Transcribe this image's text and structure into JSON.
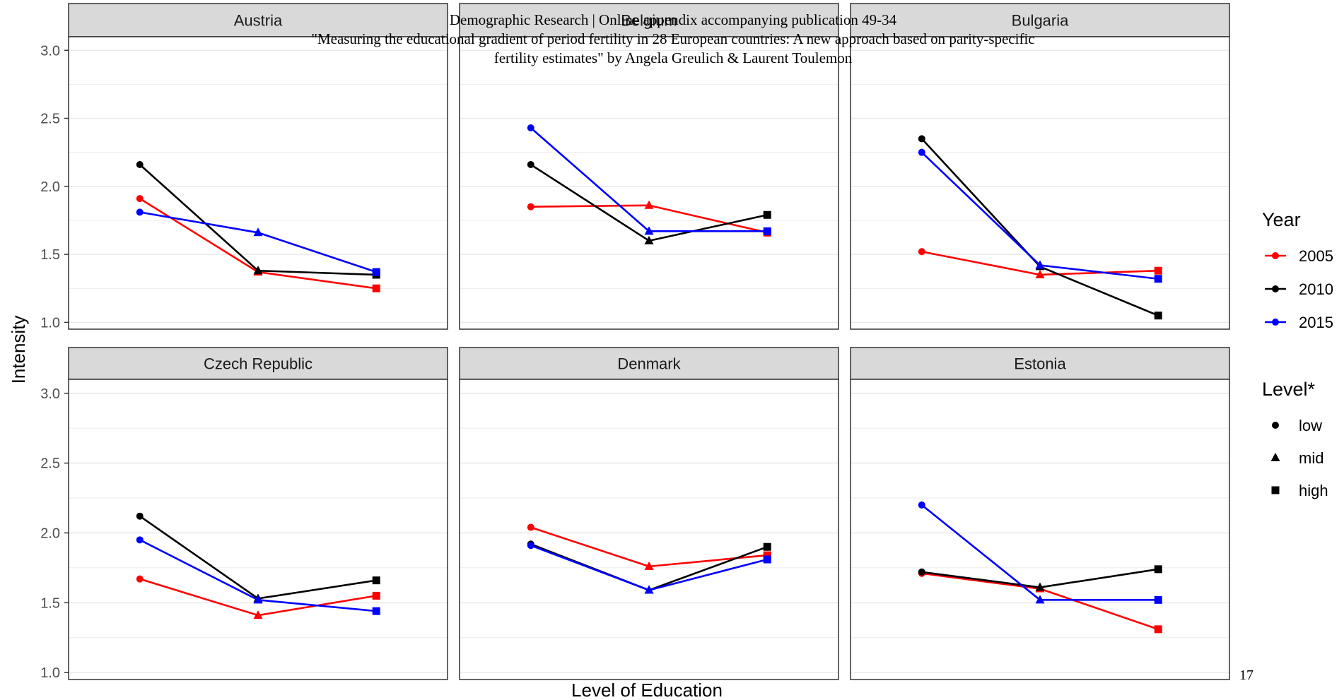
{
  "header": {
    "line1": "Demographic Research | Online appendix accompanying publication 49-34",
    "line2": "\"Measuring the educational gradient of period fertility in 28 European countries: A new approach based on parity-specific",
    "line3": "fertility estimates\" by Angela Greulich & Laurent Toulemon"
  },
  "page_number": "17",
  "colors": {
    "2005": "#ff0000",
    "2010": "#000000",
    "2015": "#0000ff",
    "strip_fill": "#d9d9d9",
    "grid": "#ebebeb",
    "panel_border": "#333333"
  },
  "chart_data": {
    "type": "line",
    "ylabel": "Intensity",
    "xlabel": "Level of Education",
    "ylim": [
      0.95,
      3.1
    ],
    "yticks": [
      "1.0",
      "1.5",
      "2.0",
      "2.5",
      "3.0"
    ],
    "ytick_values": [
      1.0,
      1.5,
      2.0,
      2.5,
      3.0
    ],
    "categories": [
      "low",
      "mid",
      "high"
    ],
    "grid": true,
    "legend_placement": "right",
    "legend": {
      "year_title": "Year",
      "years": [
        "2005",
        "2010",
        "2015"
      ],
      "level_title": "Level*",
      "levels": [
        "low",
        "mid",
        "high"
      ],
      "level_shapes": [
        "circle",
        "triangle",
        "square"
      ]
    },
    "panels": [
      {
        "name": "Austria",
        "series": [
          {
            "name": "2005",
            "values": [
              1.91,
              1.37,
              1.25
            ]
          },
          {
            "name": "2010",
            "values": [
              2.16,
              1.38,
              1.35
            ]
          },
          {
            "name": "2015",
            "values": [
              1.81,
              1.66,
              1.37
            ]
          }
        ]
      },
      {
        "name": "Belgium",
        "series": [
          {
            "name": "2005",
            "values": [
              1.85,
              1.86,
              1.66
            ]
          },
          {
            "name": "2010",
            "values": [
              2.16,
              1.6,
              1.79
            ]
          },
          {
            "name": "2015",
            "values": [
              2.43,
              1.67,
              1.67
            ]
          }
        ]
      },
      {
        "name": "Bulgaria",
        "series": [
          {
            "name": "2005",
            "values": [
              1.52,
              1.35,
              1.38
            ]
          },
          {
            "name": "2010",
            "values": [
              2.35,
              1.41,
              1.05
            ]
          },
          {
            "name": "2015",
            "values": [
              2.25,
              1.42,
              1.32
            ]
          }
        ]
      },
      {
        "name": "Czech Republic",
        "series": [
          {
            "name": "2005",
            "values": [
              1.67,
              1.41,
              1.55
            ]
          },
          {
            "name": "2010",
            "values": [
              2.12,
              1.53,
              1.66
            ]
          },
          {
            "name": "2015",
            "values": [
              1.95,
              1.52,
              1.44
            ]
          }
        ]
      },
      {
        "name": "Denmark",
        "series": [
          {
            "name": "2005",
            "values": [
              2.04,
              1.76,
              1.84
            ]
          },
          {
            "name": "2010",
            "values": [
              1.92,
              1.59,
              1.9
            ]
          },
          {
            "name": "2015",
            "values": [
              1.91,
              1.59,
              1.81
            ]
          }
        ]
      },
      {
        "name": "Estonia",
        "series": [
          {
            "name": "2005",
            "values": [
              1.71,
              1.6,
              1.31
            ]
          },
          {
            "name": "2010",
            "values": [
              1.72,
              1.61,
              1.74
            ]
          },
          {
            "name": "2015",
            "values": [
              2.2,
              1.52,
              1.52
            ]
          }
        ]
      }
    ]
  }
}
